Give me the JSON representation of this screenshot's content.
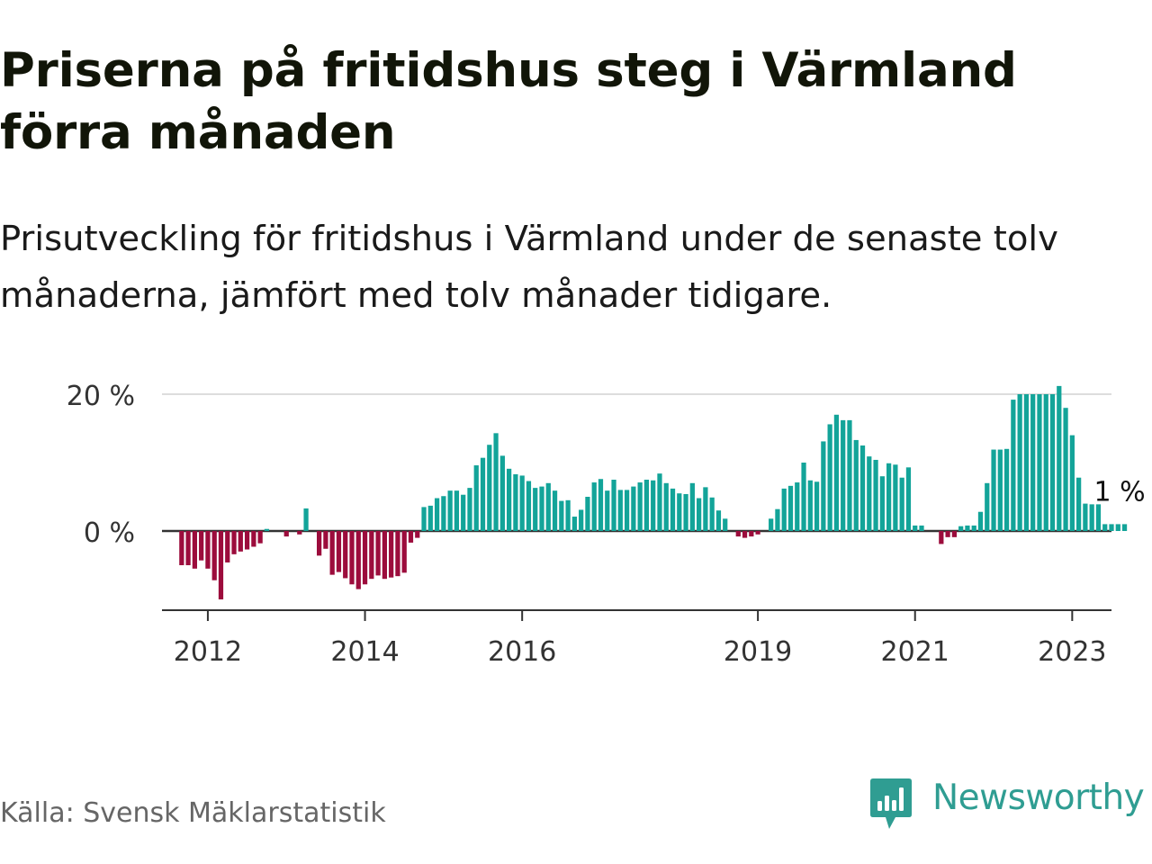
{
  "title": "Priserna på fritidshus steg i Värmland förra månaden",
  "subtitle": "Prisutveckling för fritidshus i Värmland under de senaste tolv månaderna, jämfört med tolv månader tidigare.",
  "source": "Källa: Svensk Mäklarstatistik",
  "brand": {
    "name": "Newsworthy",
    "icon": "newsworthy-logo-icon",
    "color": "#2f9d92"
  },
  "colors": {
    "positive": "#13a499",
    "negative": "#9c0c3c",
    "axis": "#333333",
    "grid": "#dddddd",
    "text": "#333333"
  },
  "chart_data": {
    "type": "bar",
    "title": "",
    "xlabel": "",
    "ylabel": "",
    "unit": "%",
    "ylim": [
      -11.5,
      20
    ],
    "yticks": [
      {
        "value": 0,
        "label": "0 %"
      },
      {
        "value": 20,
        "label": "20 %"
      }
    ],
    "xticks": [
      "2012",
      "2014",
      "2016",
      "2019",
      "2021",
      "2023"
    ],
    "xlim": [
      "2011-06",
      "2023-07"
    ],
    "grid": true,
    "legend": "none",
    "start_month": "2011-09",
    "end_label": "1 %",
    "values": [
      -5,
      -5,
      -5.5,
      -4.3,
      -5.5,
      -7.2,
      -10,
      -4.6,
      -3.4,
      -3,
      -2.7,
      -2.3,
      -1.8,
      0.3,
      0,
      0,
      -0.8,
      0,
      -0.5,
      3.3,
      0,
      -3.6,
      -2.6,
      -6.4,
      -6,
      -6.9,
      -7.8,
      -8.5,
      -7.8,
      -7,
      -6.5,
      -7,
      -6.8,
      -6.6,
      -6.1,
      -1.7,
      -1,
      3.5,
      3.7,
      4.8,
      5.1,
      5.9,
      5.9,
      5.3,
      6.3,
      9.6,
      10.7,
      12.6,
      14.3,
      11,
      9.1,
      8.3,
      8.1,
      7.3,
      6.3,
      6.5,
      7,
      5.9,
      4.4,
      4.5,
      2.1,
      3.1,
      5,
      7.1,
      7.6,
      5.9,
      7.5,
      6,
      6,
      6.5,
      7.1,
      7.5,
      7.4,
      8.4,
      7,
      6.2,
      5.5,
      5.4,
      7,
      4.8,
      6.4,
      4.9,
      3,
      1.8,
      0,
      -0.8,
      -1,
      -0.8,
      -0.5,
      0,
      1.8,
      3.2,
      6.2,
      6.6,
      7.1,
      10,
      7.4,
      7.2,
      13.1,
      15.6,
      17,
      16.2,
      16.2,
      13.3,
      12.5,
      10.9,
      10.4,
      8,
      9.9,
      9.7,
      7.8,
      9.3,
      0.8,
      0.8,
      0,
      0,
      -1.9,
      -0.9,
      -0.9,
      0.7,
      0.8,
      0.8,
      2.8,
      7,
      11.9,
      11.9,
      12,
      19.2,
      20,
      20,
      20,
      20,
      20,
      20,
      21.2,
      18,
      14,
      7.8,
      4,
      3.9,
      3.9,
      1,
      1,
      1,
      1
    ]
  }
}
